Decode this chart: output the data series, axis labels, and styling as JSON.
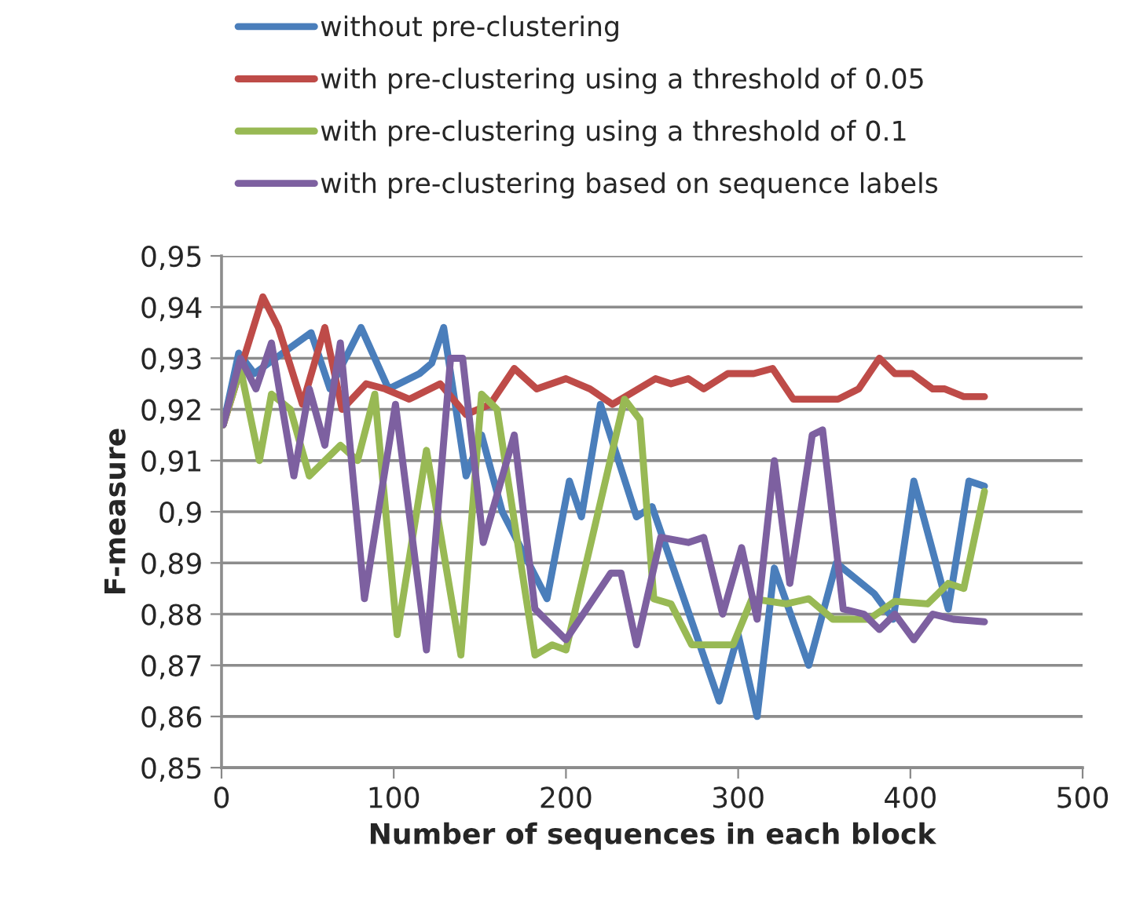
{
  "chart_data": {
    "type": "line",
    "xlabel": "Number of sequences in each block",
    "ylabel": "F-measure",
    "xlim": [
      0,
      500
    ],
    "xticks": [
      0,
      100,
      200,
      300,
      400,
      500
    ],
    "ylim": [
      0.85,
      0.95
    ],
    "yticks": [
      {
        "value": 0.85,
        "label": "0,85"
      },
      {
        "value": 0.86,
        "label": "0,86"
      },
      {
        "value": 0.87,
        "label": "0,87"
      },
      {
        "value": 0.88,
        "label": "0,88"
      },
      {
        "value": 0.89,
        "label": "0,89"
      },
      {
        "value": 0.9,
        "label": "0,9"
      },
      {
        "value": 0.91,
        "label": "0,91"
      },
      {
        "value": 0.92,
        "label": "0,92"
      },
      {
        "value": 0.93,
        "label": "0,93"
      },
      {
        "value": 0.94,
        "label": "0,94"
      },
      {
        "value": 0.95,
        "label": "0,95"
      }
    ],
    "grid": "y",
    "legend": "top",
    "marker": "none",
    "line_style": "solid",
    "series": [
      {
        "name": "without pre-clustering",
        "color": "#4a7ebb",
        "x": [
          1,
          10,
          19,
          52,
          63,
          81,
          97,
          115,
          122,
          129,
          142,
          151,
          163,
          189,
          202,
          209,
          220,
          241,
          250,
          289,
          300,
          311,
          321,
          341,
          357,
          379,
          390,
          402,
          422,
          434,
          443
        ],
        "values": [
          0.917,
          0.931,
          0.927,
          0.935,
          0.924,
          0.936,
          0.924,
          0.927,
          0.929,
          0.936,
          0.907,
          0.915,
          0.9,
          0.883,
          0.906,
          0.899,
          0.921,
          0.899,
          0.901,
          0.863,
          0.876,
          0.86,
          0.889,
          0.87,
          0.89,
          0.884,
          0.879,
          0.906,
          0.881,
          0.906,
          0.905
        ]
      },
      {
        "name": "with pre-clustering using a threshold of 0.05",
        "color": "#be4b48",
        "x": [
          1,
          24,
          33,
          47,
          60,
          70,
          84,
          95,
          109,
          127,
          142,
          156,
          170,
          183,
          200,
          214,
          227,
          252,
          261,
          271,
          280,
          294,
          309,
          320,
          332,
          358,
          370,
          382,
          391,
          401,
          413,
          420,
          431,
          443
        ],
        "values": [
          0.917,
          0.942,
          0.936,
          0.921,
          0.936,
          0.92,
          0.925,
          0.924,
          0.922,
          0.925,
          0.919,
          0.921,
          0.928,
          0.924,
          0.926,
          0.924,
          0.921,
          0.926,
          0.925,
          0.926,
          0.924,
          0.927,
          0.927,
          0.928,
          0.922,
          0.922,
          0.924,
          0.93,
          0.927,
          0.927,
          0.924,
          0.924,
          0.9225,
          0.9225
        ]
      },
      {
        "name": "with pre-clustering using a threshold of 0.1",
        "color": "#98b954",
        "x": [
          1,
          11,
          22,
          29,
          40,
          51,
          69,
          79,
          89,
          102,
          119,
          139,
          151,
          160,
          182,
          192,
          200,
          234,
          243,
          251,
          261,
          273,
          297,
          308,
          328,
          341,
          355,
          376,
          391,
          410,
          422,
          431,
          443
        ],
        "values": [
          0.917,
          0.928,
          0.91,
          0.923,
          0.92,
          0.907,
          0.913,
          0.91,
          0.923,
          0.876,
          0.912,
          0.872,
          0.923,
          0.92,
          0.872,
          0.874,
          0.873,
          0.922,
          0.918,
          0.883,
          0.882,
          0.874,
          0.874,
          0.883,
          0.882,
          0.883,
          0.879,
          0.879,
          0.8825,
          0.882,
          0.886,
          0.885,
          0.904
        ]
      },
      {
        "name": "with pre-clustering based on sequence labels",
        "color": "#7d60a0",
        "x": [
          1,
          11,
          20,
          29,
          42,
          51,
          60,
          69,
          83,
          101,
          119,
          133,
          140,
          152,
          170,
          182,
          200,
          226,
          232,
          241,
          255,
          271,
          280,
          291,
          302,
          311,
          321,
          330,
          343,
          349,
          361,
          373,
          382,
          391,
          402,
          413,
          425,
          443
        ],
        "values": [
          0.917,
          0.93,
          0.924,
          0.933,
          0.907,
          0.924,
          0.913,
          0.933,
          0.883,
          0.921,
          0.873,
          0.93,
          0.93,
          0.894,
          0.915,
          0.881,
          0.875,
          0.888,
          0.888,
          0.874,
          0.895,
          0.894,
          0.895,
          0.88,
          0.893,
          0.879,
          0.91,
          0.886,
          0.915,
          0.916,
          0.881,
          0.88,
          0.877,
          0.88,
          0.875,
          0.88,
          0.879,
          0.8785
        ]
      }
    ]
  }
}
